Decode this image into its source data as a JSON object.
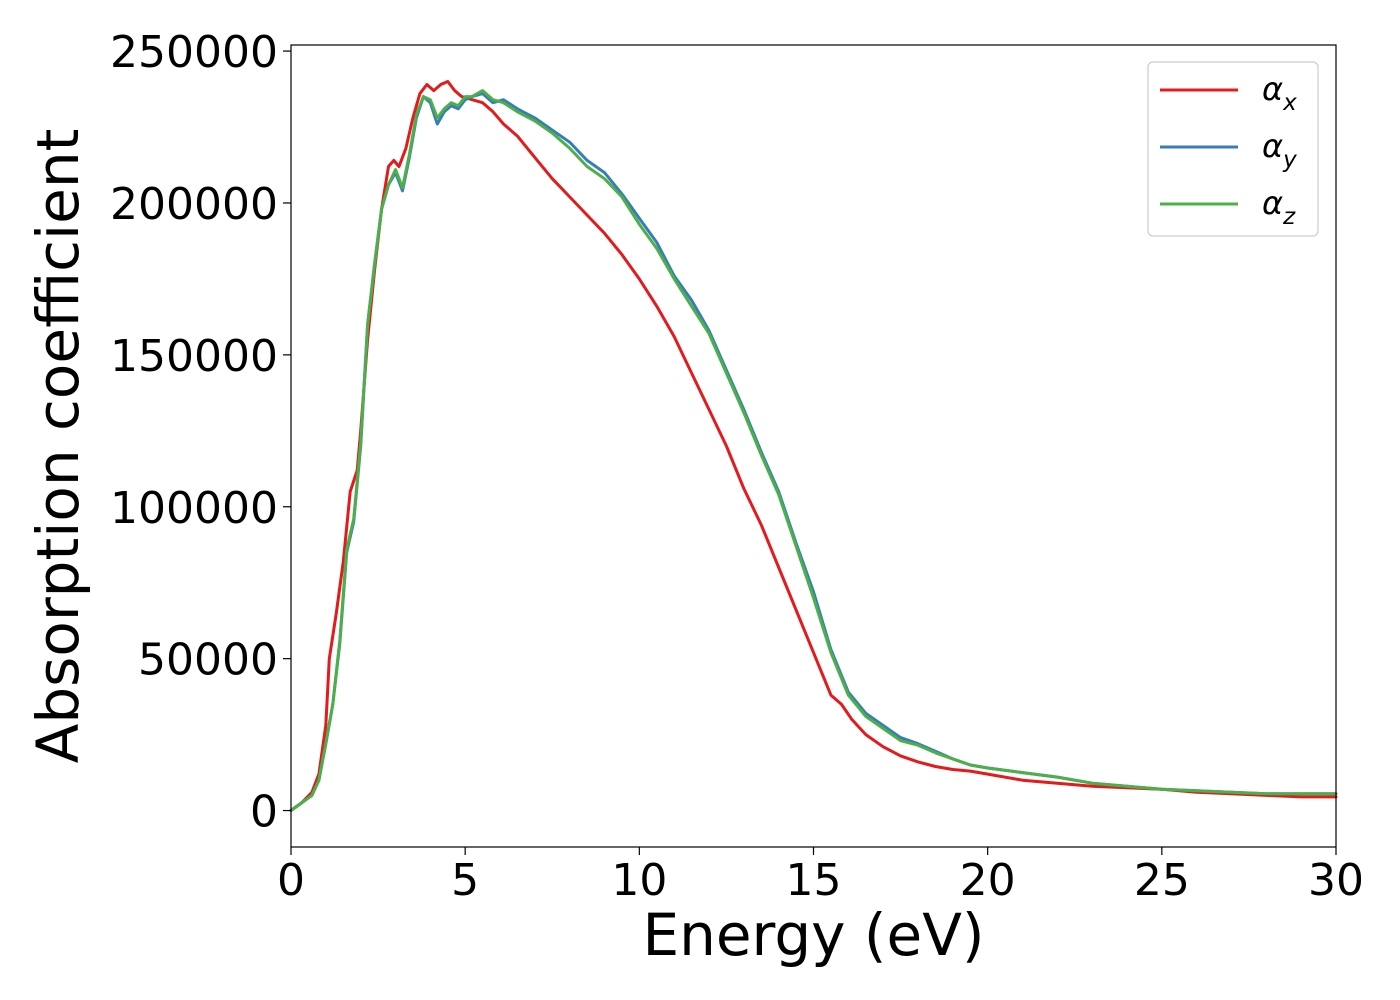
{
  "chart_data": {
    "type": "line",
    "title": "",
    "xlabel": "Energy (eV)",
    "ylabel": "Absorption coefficient",
    "xlim": [
      0,
      30
    ],
    "ylim": [
      -12000,
      252000
    ],
    "xticks": [
      0,
      5,
      10,
      15,
      20,
      25,
      30
    ],
    "xtick_labels": [
      "0",
      "5",
      "10",
      "15",
      "20",
      "25",
      "30"
    ],
    "yticks": [
      0,
      50000,
      100000,
      150000,
      200000,
      250000
    ],
    "ytick_labels": [
      "0",
      "50000",
      "100000",
      "150000",
      "200000",
      "250000"
    ],
    "grid": false,
    "legend_position": "top-right",
    "series": [
      {
        "name": "α_x",
        "label_base": "α",
        "label_sub": "x",
        "color": "#e41a1c",
        "x": [
          0,
          0.3,
          0.6,
          0.8,
          1.0,
          1.1,
          1.3,
          1.5,
          1.7,
          1.9,
          2.0,
          2.2,
          2.4,
          2.6,
          2.8,
          2.95,
          3.1,
          3.3,
          3.5,
          3.7,
          3.9,
          4.1,
          4.3,
          4.5,
          4.7,
          4.9,
          5.2,
          5.5,
          5.8,
          6.1,
          6.5,
          7.0,
          7.5,
          8.0,
          8.5,
          9.0,
          9.5,
          10.0,
          10.5,
          11.0,
          11.5,
          12.0,
          12.5,
          13.0,
          13.5,
          14.0,
          14.5,
          15.0,
          15.5,
          15.8,
          16.1,
          16.5,
          17.0,
          17.5,
          18.0,
          18.5,
          19.0,
          19.5,
          20.0,
          21.0,
          22.0,
          23.0,
          24.0,
          25.0,
          26.0,
          27.0,
          28.0,
          29.0,
          30.0
        ],
        "y": [
          0,
          2500,
          6000,
          12000,
          28000,
          50000,
          65000,
          82000,
          105000,
          112000,
          125000,
          155000,
          178000,
          198000,
          212000,
          214000,
          212000,
          218000,
          228000,
          236000,
          239000,
          237000,
          239000,
          240000,
          237000,
          235000,
          234000,
          233000,
          230000,
          226000,
          222000,
          215000,
          208000,
          202000,
          196000,
          190000,
          183000,
          175000,
          166000,
          156000,
          144000,
          132000,
          120000,
          106000,
          94000,
          80000,
          66000,
          52000,
          38000,
          35000,
          30000,
          25000,
          21000,
          18000,
          16000,
          14500,
          13500,
          13000,
          12000,
          10000,
          9000,
          8000,
          7500,
          7000,
          6000,
          5500,
          5000,
          4500,
          4500
        ]
      },
      {
        "name": "α_y",
        "label_base": "α",
        "label_sub": "y",
        "color": "#377eb8",
        "x": [
          0,
          0.3,
          0.6,
          0.8,
          1.0,
          1.2,
          1.4,
          1.6,
          1.8,
          2.0,
          2.2,
          2.4,
          2.6,
          2.8,
          3.0,
          3.2,
          3.4,
          3.6,
          3.8,
          4.0,
          4.2,
          4.4,
          4.6,
          4.8,
          5.0,
          5.2,
          5.5,
          5.8,
          6.1,
          6.5,
          7.0,
          7.5,
          8.0,
          8.5,
          9.0,
          9.5,
          10.0,
          10.5,
          11.0,
          11.5,
          12.0,
          12.5,
          13.0,
          13.5,
          14.0,
          14.5,
          15.0,
          15.5,
          16.0,
          16.5,
          17.0,
          17.5,
          18.0,
          18.5,
          19.0,
          19.5,
          20.0,
          21.0,
          22.0,
          23.0,
          24.0,
          25.0,
          26.0,
          27.0,
          28.0,
          29.0,
          30.0
        ],
        "y": [
          0,
          2500,
          5000,
          10000,
          22000,
          35000,
          55000,
          85000,
          95000,
          120000,
          160000,
          180000,
          198000,
          206000,
          210000,
          204000,
          215000,
          228000,
          235000,
          233000,
          226000,
          230000,
          232000,
          231000,
          234000,
          235000,
          236000,
          233000,
          234000,
          231000,
          228000,
          224000,
          220000,
          214000,
          210000,
          203000,
          195000,
          187000,
          176000,
          168000,
          158000,
          145000,
          132000,
          118000,
          105000,
          88000,
          72000,
          53000,
          39000,
          32000,
          28000,
          24000,
          22000,
          19500,
          17000,
          15000,
          14000,
          12500,
          11000,
          9000,
          8000,
          7000,
          6500,
          6000,
          5500,
          5500,
          5500
        ]
      },
      {
        "name": "α_z",
        "label_base": "α",
        "label_sub": "z",
        "color": "#4daf4a",
        "x": [
          0,
          0.3,
          0.6,
          0.8,
          1.0,
          1.2,
          1.4,
          1.6,
          1.8,
          2.0,
          2.2,
          2.4,
          2.6,
          2.8,
          3.0,
          3.2,
          3.4,
          3.6,
          3.8,
          4.0,
          4.2,
          4.4,
          4.6,
          4.8,
          5.0,
          5.2,
          5.5,
          5.8,
          6.1,
          6.5,
          7.0,
          7.5,
          8.0,
          8.5,
          9.0,
          9.5,
          10.0,
          10.5,
          11.0,
          11.5,
          12.0,
          12.5,
          13.0,
          13.5,
          14.0,
          14.5,
          15.0,
          15.5,
          16.0,
          16.5,
          17.0,
          17.5,
          18.0,
          18.5,
          19.0,
          19.5,
          20.0,
          21.0,
          22.0,
          23.0,
          24.0,
          25.0,
          26.0,
          27.0,
          28.0,
          29.0,
          30.0
        ],
        "y": [
          0,
          2500,
          5000,
          10000,
          22000,
          35000,
          56000,
          86000,
          96000,
          121000,
          160000,
          180000,
          198000,
          206000,
          211000,
          205000,
          216000,
          229000,
          235000,
          234000,
          228000,
          231000,
          233000,
          232000,
          235000,
          235000,
          237000,
          234000,
          233000,
          230000,
          227000,
          223000,
          218000,
          212000,
          208000,
          202000,
          193000,
          185000,
          175000,
          166000,
          157000,
          144000,
          131000,
          117000,
          104000,
          87000,
          70000,
          52000,
          38000,
          31000,
          27000,
          23000,
          21500,
          19000,
          17000,
          15000,
          14000,
          12500,
          11000,
          9000,
          8000,
          7000,
          6500,
          6000,
          5500,
          5500,
          5500
        ]
      }
    ]
  }
}
